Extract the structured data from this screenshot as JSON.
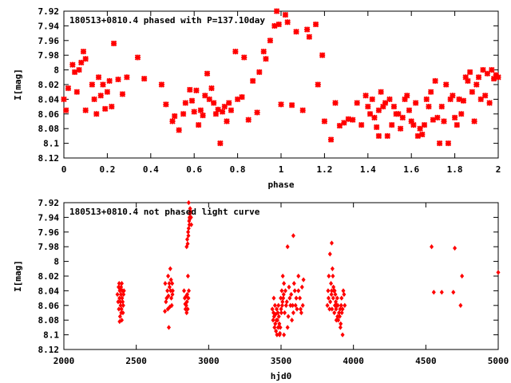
{
  "marker_color": "#ff0000",
  "chart_data": [
    {
      "type": "scatter",
      "title": "180513+0810.4 phased with P=137.10day",
      "xlabel": "phase",
      "ylabel": "I[mag]",
      "xlim": [
        0,
        2
      ],
      "ylim": [
        7.92,
        8.12
      ],
      "y_inverted": true,
      "grid": false,
      "xticks": [
        "0",
        "0.2",
        "0.4",
        "0.6",
        "0.8",
        "1",
        "1.2",
        "1.4",
        "1.6",
        "1.8",
        "2"
      ],
      "yticks": [
        "7.92",
        "7.94",
        "7.96",
        "7.98",
        "8",
        "8.02",
        "8.04",
        "8.06",
        "8.08",
        "8.1",
        "8.12"
      ],
      "marker": "star",
      "points": [
        [
          0.0,
          8.04
        ],
        [
          0.01,
          8.055
        ],
        [
          0.02,
          8.025
        ],
        [
          0.04,
          7.993
        ],
        [
          0.05,
          8.003
        ],
        [
          0.06,
          8.03
        ],
        [
          0.07,
          8.0
        ],
        [
          0.08,
          7.99
        ],
        [
          0.09,
          7.975
        ],
        [
          0.1,
          7.985
        ],
        [
          0.1,
          8.055
        ],
        [
          0.13,
          8.02
        ],
        [
          0.14,
          8.04
        ],
        [
          0.15,
          8.06
        ],
        [
          0.16,
          8.01
        ],
        [
          0.17,
          8.035
        ],
        [
          0.18,
          8.02
        ],
        [
          0.19,
          8.053
        ],
        [
          0.2,
          8.03
        ],
        [
          0.21,
          8.015
        ],
        [
          0.22,
          8.05
        ],
        [
          0.23,
          7.964
        ],
        [
          0.25,
          8.013
        ],
        [
          0.27,
          8.033
        ],
        [
          0.29,
          8.01
        ],
        [
          0.34,
          7.983
        ],
        [
          0.37,
          8.012
        ],
        [
          0.45,
          8.02
        ],
        [
          0.47,
          8.047
        ],
        [
          0.5,
          8.07
        ],
        [
          0.51,
          8.063
        ],
        [
          0.53,
          8.082
        ],
        [
          0.55,
          8.06
        ],
        [
          0.56,
          8.045
        ],
        [
          0.58,
          8.027
        ],
        [
          0.59,
          8.042
        ],
        [
          0.6,
          8.057
        ],
        [
          0.61,
          8.028
        ],
        [
          0.62,
          8.075
        ],
        [
          0.63,
          8.055
        ],
        [
          0.64,
          8.062
        ],
        [
          0.65,
          8.035
        ],
        [
          0.66,
          8.005
        ],
        [
          0.67,
          8.04
        ],
        [
          0.68,
          8.025
        ],
        [
          0.69,
          8.045
        ],
        [
          0.7,
          8.06
        ],
        [
          0.71,
          8.054
        ],
        [
          0.72,
          8.1
        ],
        [
          0.73,
          8.057
        ],
        [
          0.74,
          8.05
        ],
        [
          0.75,
          8.07
        ],
        [
          0.76,
          8.045
        ],
        [
          0.77,
          8.055
        ],
        [
          0.79,
          7.975
        ],
        [
          0.8,
          8.04
        ],
        [
          0.82,
          8.037
        ],
        [
          0.83,
          7.983
        ],
        [
          0.85,
          8.068
        ],
        [
          0.87,
          8.015
        ],
        [
          0.89,
          8.058
        ],
        [
          0.9,
          8.003
        ],
        [
          0.92,
          7.975
        ],
        [
          0.93,
          7.985
        ],
        [
          0.95,
          7.96
        ],
        [
          0.97,
          7.94
        ],
        [
          0.98,
          7.92
        ],
        [
          0.99,
          7.938
        ],
        [
          1.0,
          8.047
        ],
        [
          1.02,
          7.925
        ],
        [
          1.03,
          7.935
        ],
        [
          1.05,
          8.048
        ],
        [
          1.07,
          7.948
        ],
        [
          1.1,
          8.055
        ],
        [
          1.12,
          7.945
        ],
        [
          1.13,
          7.955
        ],
        [
          1.16,
          7.938
        ],
        [
          1.17,
          8.02
        ],
        [
          1.19,
          7.98
        ],
        [
          1.2,
          8.07
        ],
        [
          1.23,
          8.095
        ],
        [
          1.25,
          8.045
        ],
        [
          1.27,
          8.076
        ],
        [
          1.29,
          8.072
        ],
        [
          1.31,
          8.067
        ],
        [
          1.33,
          8.068
        ],
        [
          1.35,
          8.045
        ],
        [
          1.37,
          8.075
        ],
        [
          1.39,
          8.035
        ],
        [
          1.4,
          8.05
        ],
        [
          1.41,
          8.06
        ],
        [
          1.42,
          8.04
        ],
        [
          1.43,
          8.065
        ],
        [
          1.44,
          8.078
        ],
        [
          1.45,
          8.09
        ],
        [
          1.45,
          8.055
        ],
        [
          1.46,
          8.03
        ],
        [
          1.47,
          8.05
        ],
        [
          1.48,
          8.045
        ],
        [
          1.49,
          8.09
        ],
        [
          1.5,
          8.04
        ],
        [
          1.51,
          8.075
        ],
        [
          1.52,
          8.05
        ],
        [
          1.53,
          8.06
        ],
        [
          1.54,
          8.06
        ],
        [
          1.55,
          8.08
        ],
        [
          1.56,
          8.065
        ],
        [
          1.57,
          8.04
        ],
        [
          1.58,
          8.035
        ],
        [
          1.59,
          8.055
        ],
        [
          1.6,
          8.07
        ],
        [
          1.61,
          8.075
        ],
        [
          1.62,
          8.045
        ],
        [
          1.63,
          8.09
        ],
        [
          1.64,
          8.08
        ],
        [
          1.65,
          8.088
        ],
        [
          1.66,
          8.075
        ],
        [
          1.67,
          8.04
        ],
        [
          1.68,
          8.05
        ],
        [
          1.69,
          8.03
        ],
        [
          1.7,
          8.068
        ],
        [
          1.71,
          8.015
        ],
        [
          1.72,
          8.065
        ],
        [
          1.73,
          8.1
        ],
        [
          1.74,
          8.05
        ],
        [
          1.75,
          8.07
        ],
        [
          1.76,
          8.02
        ],
        [
          1.77,
          8.1
        ],
        [
          1.78,
          8.04
        ],
        [
          1.79,
          8.035
        ],
        [
          1.8,
          8.065
        ],
        [
          1.81,
          8.075
        ],
        [
          1.82,
          8.04
        ],
        [
          1.83,
          8.06
        ],
        [
          1.84,
          8.042
        ],
        [
          1.85,
          8.01
        ],
        [
          1.86,
          8.015
        ],
        [
          1.87,
          8.003
        ],
        [
          1.88,
          8.03
        ],
        [
          1.89,
          8.07
        ],
        [
          1.9,
          8.02
        ],
        [
          1.91,
          8.01
        ],
        [
          1.92,
          8.04
        ],
        [
          1.93,
          8.0
        ],
        [
          1.94,
          8.035
        ],
        [
          1.95,
          8.005
        ],
        [
          1.96,
          8.045
        ],
        [
          1.97,
          8.0
        ],
        [
          1.98,
          8.012
        ],
        [
          1.99,
          8.007
        ],
        [
          2.0,
          8.01
        ]
      ]
    },
    {
      "type": "scatter",
      "title": "180513+0810.4 not phased light curve",
      "xlabel": "hjd0",
      "ylabel": "I[mag]",
      "xlim": [
        2000,
        5000
      ],
      "ylim": [
        7.92,
        8.12
      ],
      "y_inverted": true,
      "grid": false,
      "xticks": [
        "2000",
        "2500",
        "3000",
        "3500",
        "4000",
        "4500",
        "5000"
      ],
      "yticks": [
        "7.92",
        "7.94",
        "7.96",
        "7.98",
        "8",
        "8.02",
        "8.04",
        "8.06",
        "8.08",
        "8.1",
        "8.12"
      ],
      "marker": "diamond",
      "points": [
        [
          2370,
          8.045
        ],
        [
          2375,
          8.055
        ],
        [
          2378,
          8.035
        ],
        [
          2380,
          8.065
        ],
        [
          2382,
          8.03
        ],
        [
          2384,
          8.05
        ],
        [
          2386,
          8.04
        ],
        [
          2388,
          8.075
        ],
        [
          2390,
          8.055
        ],
        [
          2392,
          8.06
        ],
        [
          2394,
          8.045
        ],
        [
          2395,
          8.035
        ],
        [
          2396,
          8.07
        ],
        [
          2398,
          8.065
        ],
        [
          2400,
          8.08
        ],
        [
          2400,
          8.03
        ],
        [
          2402,
          8.05
        ],
        [
          2404,
          8.04
        ],
        [
          2406,
          8.055
        ],
        [
          2408,
          8.07
        ],
        [
          2410,
          8.06
        ],
        [
          2412,
          8.045
        ],
        [
          2415,
          8.04
        ],
        [
          2385,
          8.082
        ],
        [
          2390,
          8.038
        ],
        [
          2698,
          8.068
        ],
        [
          2700,
          8.03
        ],
        [
          2705,
          8.055
        ],
        [
          2710,
          8.05
        ],
        [
          2715,
          8.04
        ],
        [
          2718,
          8.065
        ],
        [
          2720,
          8.02
        ],
        [
          2722,
          8.047
        ],
        [
          2725,
          8.09
        ],
        [
          2728,
          8.03
        ],
        [
          2730,
          8.035
        ],
        [
          2732,
          8.062
        ],
        [
          2735,
          8.01
        ],
        [
          2738,
          8.04
        ],
        [
          2740,
          8.025
        ],
        [
          2742,
          8.05
        ],
        [
          2745,
          8.06
        ],
        [
          2748,
          8.03
        ],
        [
          2750,
          8.045
        ],
        [
          2752,
          8.04
        ],
        [
          2830,
          8.04
        ],
        [
          2835,
          8.05
        ],
        [
          2838,
          8.058
        ],
        [
          2840,
          8.065
        ],
        [
          2842,
          8.048
        ],
        [
          2845,
          8.06
        ],
        [
          2848,
          8.07
        ],
        [
          2850,
          8.055
        ],
        [
          2852,
          8.045
        ],
        [
          2855,
          8.065
        ],
        [
          2857,
          8.02
        ],
        [
          2860,
          8.05
        ],
        [
          2863,
          8.04
        ],
        [
          2848,
          7.98
        ],
        [
          2852,
          7.97
        ],
        [
          2855,
          7.976
        ],
        [
          2858,
          7.96
        ],
        [
          2860,
          7.965
        ],
        [
          2862,
          7.955
        ],
        [
          2865,
          7.945
        ],
        [
          2867,
          7.95
        ],
        [
          2868,
          7.94
        ],
        [
          2870,
          7.935
        ],
        [
          2872,
          7.928
        ],
        [
          2875,
          7.932
        ],
        [
          2878,
          7.94
        ],
        [
          2880,
          7.95
        ],
        [
          2862,
          7.92
        ],
        [
          2870,
          7.942
        ],
        [
          3440,
          8.065
        ],
        [
          3445,
          8.08
        ],
        [
          3448,
          8.07
        ],
        [
          3450,
          8.05
        ],
        [
          3452,
          8.075
        ],
        [
          3455,
          8.09
        ],
        [
          3458,
          8.06
        ],
        [
          3460,
          8.085
        ],
        [
          3462,
          8.072
        ],
        [
          3465,
          8.095
        ],
        [
          3468,
          8.08
        ],
        [
          3470,
          8.065
        ],
        [
          3472,
          8.1
        ],
        [
          3475,
          8.08
        ],
        [
          3478,
          8.07
        ],
        [
          3480,
          8.09
        ],
        [
          3482,
          8.06
        ],
        [
          3485,
          8.075
        ],
        [
          3488,
          8.085
        ],
        [
          3490,
          8.1
        ],
        [
          3492,
          8.098
        ],
        [
          3495,
          8.09
        ],
        [
          3498,
          8.05
        ],
        [
          3500,
          8.065
        ],
        [
          3502,
          8.07
        ],
        [
          3505,
          8.04
        ],
        [
          3508,
          8.06
        ],
        [
          3510,
          8.055
        ],
        [
          3512,
          8.02
        ],
        [
          3515,
          8.05
        ],
        [
          3518,
          8.045
        ],
        [
          3520,
          8.03
        ],
        [
          3525,
          8.07
        ],
        [
          3530,
          8.04
        ],
        [
          3535,
          8.06
        ],
        [
          3540,
          8.055
        ],
        [
          3545,
          8.09
        ],
        [
          3550,
          8.075
        ],
        [
          3555,
          8.035
        ],
        [
          3560,
          8.05
        ],
        [
          3565,
          8.06
        ],
        [
          3570,
          8.045
        ],
        [
          3575,
          8.08
        ],
        [
          3580,
          8.06
        ],
        [
          3585,
          8.07
        ],
        [
          3590,
          8.03
        ],
        [
          3595,
          8.04
        ],
        [
          3600,
          8.06
        ],
        [
          3605,
          8.05
        ],
        [
          3610,
          8.065
        ],
        [
          3620,
          8.04
        ],
        [
          3630,
          8.05
        ],
        [
          3635,
          8.065
        ],
        [
          3640,
          8.07
        ],
        [
          3645,
          8.035
        ],
        [
          3650,
          8.06
        ],
        [
          3655,
          8.025
        ],
        [
          3520,
          8.1
        ],
        [
          3545,
          7.98
        ],
        [
          3585,
          7.965
        ],
        [
          3620,
          8.02
        ],
        [
          3820,
          8.06
        ],
        [
          3825,
          8.04
        ],
        [
          3828,
          8.05
        ],
        [
          3830,
          8.02
        ],
        [
          3835,
          8.065
        ],
        [
          3840,
          8.055
        ],
        [
          3845,
          8.03
        ],
        [
          3848,
          8.045
        ],
        [
          3850,
          8.04
        ],
        [
          3852,
          8.065
        ],
        [
          3855,
          8.01
        ],
        [
          3858,
          8.02
        ],
        [
          3860,
          8.05
        ],
        [
          3862,
          8.035
        ],
        [
          3865,
          8.04
        ],
        [
          3868,
          8.07
        ],
        [
          3870,
          8.04
        ],
        [
          3872,
          8.06
        ],
        [
          3875,
          8.045
        ],
        [
          3878,
          8.055
        ],
        [
          3880,
          8.065
        ],
        [
          3882,
          8.08
        ],
        [
          3885,
          8.06
        ],
        [
          3888,
          8.05
        ],
        [
          3890,
          8.075
        ],
        [
          3892,
          8.06
        ],
        [
          3895,
          8.08
        ],
        [
          3900,
          8.07
        ],
        [
          3905,
          8.075
        ],
        [
          3908,
          8.065
        ],
        [
          3910,
          8.09
        ],
        [
          3912,
          8.085
        ],
        [
          3915,
          8.06
        ],
        [
          3918,
          8.05
        ],
        [
          3920,
          8.07
        ],
        [
          3925,
          8.065
        ],
        [
          3930,
          8.04
        ],
        [
          3935,
          8.045
        ],
        [
          3940,
          8.06
        ],
        [
          3850,
          7.975
        ],
        [
          3838,
          7.99
        ],
        [
          3925,
          8.1
        ],
        [
          4555,
          8.042
        ],
        [
          4610,
          8.042
        ],
        [
          4690,
          8.042
        ],
        [
          4740,
          8.06
        ],
        [
          4750,
          8.02
        ],
        [
          5000,
          8.015
        ],
        [
          4540,
          7.98
        ],
        [
          4700,
          7.982
        ]
      ]
    }
  ]
}
